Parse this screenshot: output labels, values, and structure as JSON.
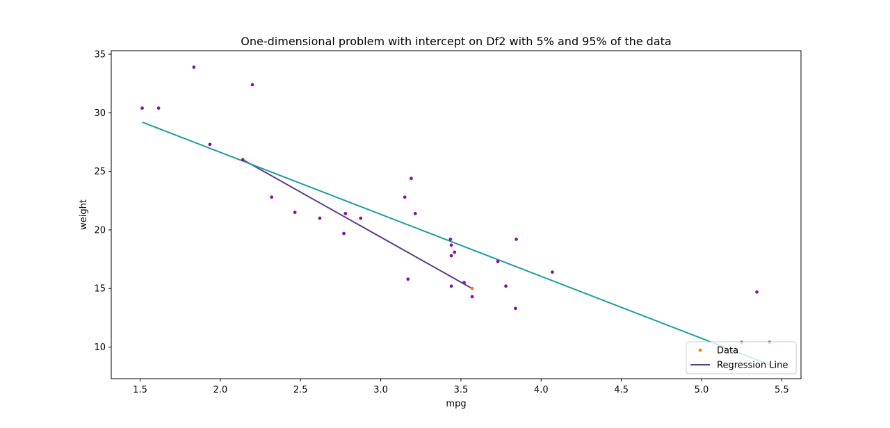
{
  "chart_data": {
    "type": "scatter",
    "title": "One-dimensional problem with intercept on Df2 with 5% and 95% of the data",
    "xlabel": "mpg",
    "ylabel": "weight",
    "xlim": [
      1.32,
      5.62
    ],
    "ylim": [
      7.3,
      35.3
    ],
    "x_ticks": [
      1.5,
      2.0,
      2.5,
      3.0,
      3.5,
      4.0,
      4.5,
      5.0,
      5.5
    ],
    "x_tick_labels": [
      "1.5",
      "2.0",
      "2.5",
      "3.0",
      "3.5",
      "4.0",
      "4.5",
      "5.0",
      "5.5"
    ],
    "y_ticks": [
      10,
      15,
      20,
      25,
      30,
      35
    ],
    "y_tick_labels": [
      "10",
      "15",
      "20",
      "25",
      "30",
      "35"
    ],
    "grid": false,
    "legend": {
      "position": "lower-right",
      "entries": [
        {
          "label": "Data",
          "color": "#ff7f0e",
          "kind": "marker"
        },
        {
          "label": "Regression Line",
          "color": "#5b3c8c",
          "kind": "line"
        }
      ]
    },
    "series": [
      {
        "name": "Data",
        "kind": "scatter",
        "color": "#8b10a8",
        "points": [
          [
            1.513,
            30.4
          ],
          [
            1.615,
            30.4
          ],
          [
            1.835,
            33.9
          ],
          [
            1.935,
            27.3
          ],
          [
            2.14,
            26.0
          ],
          [
            2.2,
            32.4
          ],
          [
            2.32,
            22.8
          ],
          [
            2.465,
            21.5
          ],
          [
            2.62,
            21.0
          ],
          [
            2.77,
            19.7
          ],
          [
            2.78,
            21.4
          ],
          [
            2.875,
            21.0
          ],
          [
            3.15,
            22.8
          ],
          [
            3.17,
            15.8
          ],
          [
            3.19,
            24.4
          ],
          [
            3.215,
            21.4
          ],
          [
            3.435,
            19.2
          ],
          [
            3.44,
            18.7
          ],
          [
            3.44,
            17.8
          ],
          [
            3.44,
            15.2
          ],
          [
            3.46,
            18.1
          ],
          [
            3.52,
            15.5
          ],
          [
            3.57,
            14.3
          ],
          [
            3.73,
            17.3
          ],
          [
            3.78,
            15.2
          ],
          [
            3.84,
            13.3
          ],
          [
            3.845,
            19.2
          ],
          [
            4.07,
            16.4
          ],
          [
            5.25,
            10.4
          ],
          [
            5.345,
            14.7
          ],
          [
            5.424,
            10.4
          ]
        ]
      },
      {
        "name": "Data",
        "kind": "scatter",
        "color": "#ff7f0e",
        "points": [
          [
            3.57,
            15.0
          ]
        ]
      },
      {
        "name": "Regression Line",
        "kind": "line",
        "color": "#5b3c8c",
        "points": [
          [
            2.14,
            26.0
          ],
          [
            3.57,
            15.0
          ]
        ]
      },
      {
        "name": "",
        "kind": "line",
        "color": "#1a9ba3",
        "points": [
          [
            1.513,
            29.2
          ],
          [
            5.424,
            8.5
          ]
        ]
      }
    ]
  }
}
